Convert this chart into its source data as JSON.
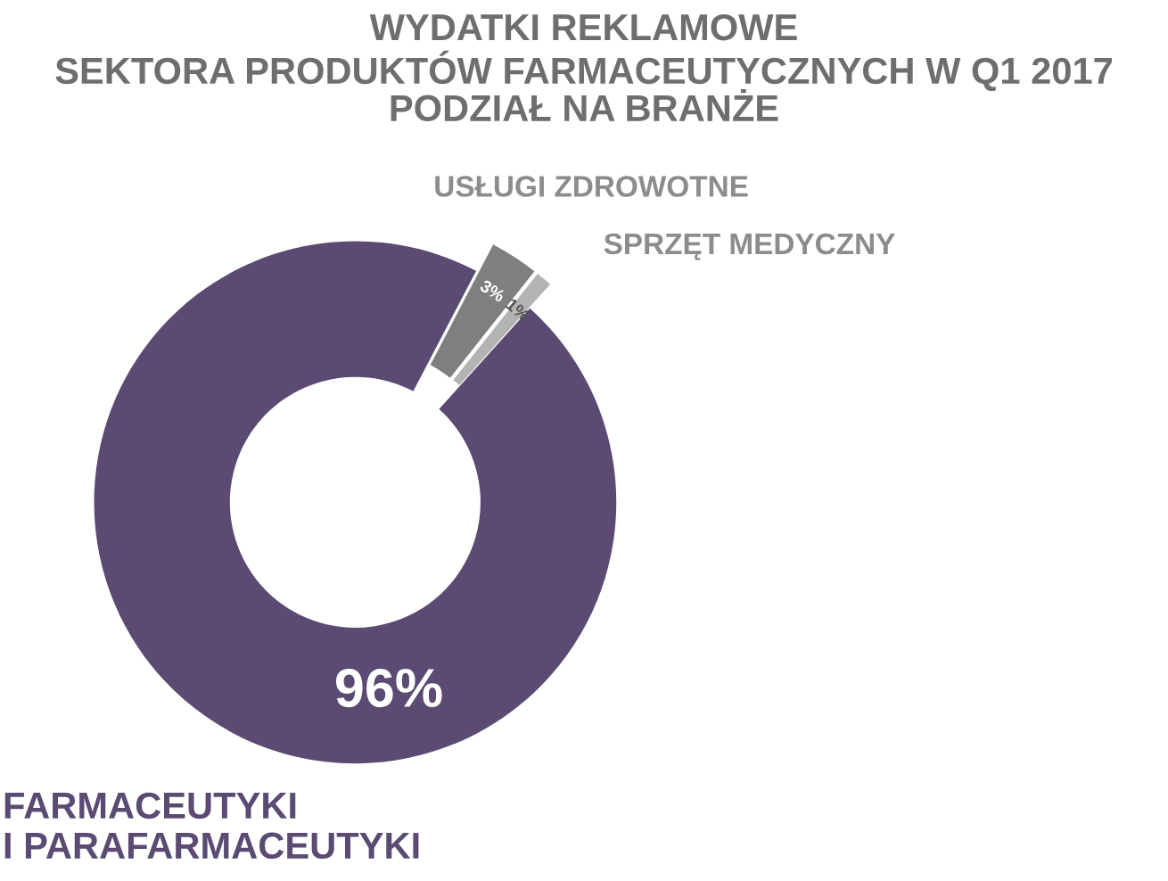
{
  "chart_data": {
    "type": "donut",
    "title": "WYDATKI REKLAMOWE\nSEKTORA PRODUKTÓW FARMACEUTYCZNYCH W Q1 2017\nPODZIAŁ NA BRANŻE",
    "categories": [
      "FARMACEUTYKI\nI PARAFARMACEUTYKI",
      "USŁUGI ZDROWOTNE",
      "SPRZĘT MEDYCZNY"
    ],
    "values": [
      96,
      3,
      1
    ],
    "colors": [
      "#5b4b73",
      "#7f7f7f",
      "#b3b3b3"
    ],
    "value_labels": [
      "96%",
      "3%",
      "1%"
    ],
    "legend": false
  }
}
